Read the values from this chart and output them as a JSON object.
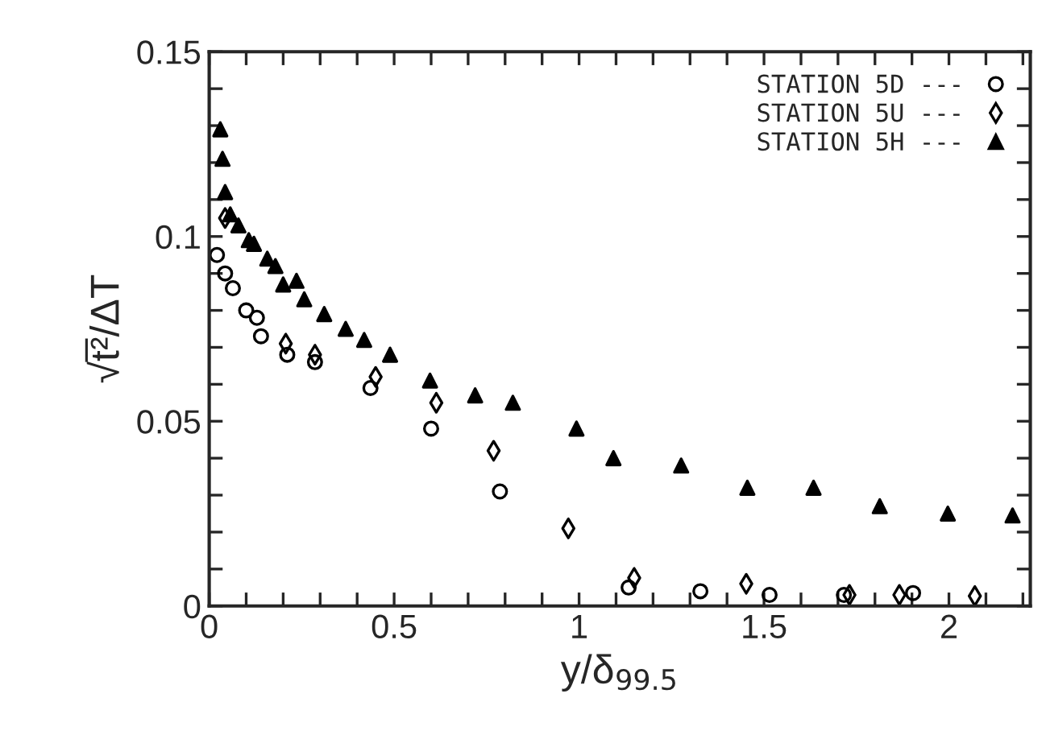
{
  "chart_data": {
    "type": "scatter",
    "xlabel": "y/δ$_{99.5}$",
    "ylabel": "√t̅²/ΔT",
    "xlim": [
      0,
      2.22
    ],
    "ylim": [
      0,
      0.15
    ],
    "xticks": [
      0,
      {
        "value": 0.1,
        "label": null
      },
      {
        "value": 0.2,
        "label": null
      },
      {
        "value": 0.3,
        "label": null
      },
      {
        "value": 0.4,
        "label": null
      },
      0.5,
      {
        "value": 0.6,
        "label": null
      },
      {
        "value": 0.7,
        "label": null
      },
      {
        "value": 0.8,
        "label": null
      },
      {
        "value": 0.9,
        "label": null
      },
      1,
      {
        "value": 1.1,
        "label": null
      },
      {
        "value": 1.2,
        "label": null
      },
      {
        "value": 1.3,
        "label": null
      },
      {
        "value": 1.4,
        "label": null
      },
      1.5,
      {
        "value": 1.6,
        "label": null
      },
      {
        "value": 1.7,
        "label": null
      },
      {
        "value": 1.8,
        "label": null
      },
      {
        "value": 1.9,
        "label": null
      },
      2,
      {
        "value": 2.1,
        "label": null
      },
      {
        "value": 2.2,
        "label": null
      }
    ],
    "yticks": [
      0,
      {
        "value": 0.01,
        "label": null
      },
      {
        "value": 0.02,
        "label": null
      },
      {
        "value": 0.03,
        "label": null
      },
      {
        "value": 0.04,
        "label": null
      },
      0.05,
      {
        "value": 0.06,
        "label": null
      },
      {
        "value": 0.07,
        "label": null
      },
      {
        "value": 0.08,
        "label": null
      },
      {
        "value": 0.09,
        "label": null
      },
      0.1,
      {
        "value": 0.11,
        "label": null
      },
      {
        "value": 0.12,
        "label": null
      },
      {
        "value": 0.13,
        "label": null
      },
      {
        "value": 0.14,
        "label": null
      },
      0.15
    ],
    "legend": "top right",
    "grid": false,
    "series": [
      {
        "name": "STATION 5D ---",
        "color": "#000000",
        "marker": "circle",
        "x": [
          0.021,
          0.043,
          0.064,
          0.1,
          0.129,
          0.14,
          0.211,
          0.286,
          0.436,
          0.6,
          0.786,
          1.134,
          1.328,
          1.515,
          1.716,
          1.903
        ],
        "values": [
          0.095,
          0.09,
          0.086,
          0.08,
          0.078,
          0.073,
          0.068,
          0.066,
          0.059,
          0.048,
          0.031,
          0.005,
          0.004,
          0.003,
          0.003,
          0.0035
        ]
      },
      {
        "name": "STATION 5U ---",
        "color": "#000000",
        "marker": "diamond",
        "x": [
          0.043,
          0.207,
          0.286,
          0.45,
          0.614,
          0.769,
          0.971,
          1.149,
          1.452,
          1.731,
          1.866,
          2.07
        ],
        "values": [
          0.105,
          0.071,
          0.068,
          0.062,
          0.055,
          0.042,
          0.021,
          0.0076,
          0.006,
          0.003,
          0.003,
          0.0027
        ]
      },
      {
        "name": "STATION 5H ---",
        "color": "#000000",
        "marker": "triangle",
        "x": [
          0.03,
          0.036,
          0.043,
          0.057,
          0.079,
          0.107,
          0.121,
          0.157,
          0.179,
          0.2,
          0.236,
          0.257,
          0.311,
          0.369,
          0.419,
          0.489,
          0.597,
          0.719,
          0.821,
          0.993,
          1.093,
          1.276,
          1.455,
          1.634,
          1.813,
          1.997,
          2.172
        ],
        "values": [
          0.129,
          0.121,
          0.112,
          0.106,
          0.103,
          0.099,
          0.098,
          0.094,
          0.092,
          0.087,
          0.088,
          0.083,
          0.079,
          0.075,
          0.072,
          0.068,
          0.061,
          0.057,
          0.055,
          0.048,
          0.04,
          0.038,
          0.032,
          0.032,
          0.027,
          0.025,
          0.0245
        ]
      }
    ]
  }
}
